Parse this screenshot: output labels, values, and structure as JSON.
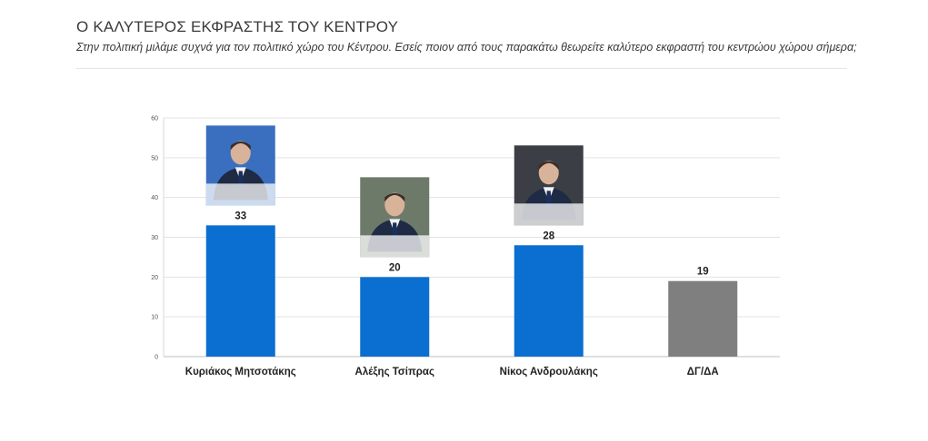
{
  "header": {
    "title": "Ο ΚΑΛΥΤΕΡΟΣ ΕΚΦΡΑΣΤΗΣ ΤΟΥ ΚΕΝΤΡΟΥ",
    "subtitle": "Στην πολιτική μιλάμε συχνά για τον πολιτικό χώρο του Κέντρου. Εσείς ποιον από τους παρακάτω θεωρείτε καλύτερο εκφραστή του κεντρώου χώρου σήμερα;"
  },
  "chart_data": {
    "type": "bar",
    "categories": [
      "Κυριάκος Μητσοτάκης",
      "Αλέξης Τσίπρας",
      "Νίκος Ανδρουλάκης",
      "ΔΓ/ΔΑ"
    ],
    "values": [
      33,
      20,
      28,
      19
    ],
    "colors": [
      "#0a6fd0",
      "#0a6fd0",
      "#0a6fd0",
      "#7f7f7f"
    ],
    "ylim": [
      0,
      60
    ],
    "yticks": [
      0,
      10,
      20,
      30,
      40,
      50,
      60
    ],
    "grid": true,
    "xlabel": "",
    "ylabel": "",
    "photo_icons": [
      "portrait-icon",
      "portrait-icon",
      "portrait-icon"
    ]
  }
}
